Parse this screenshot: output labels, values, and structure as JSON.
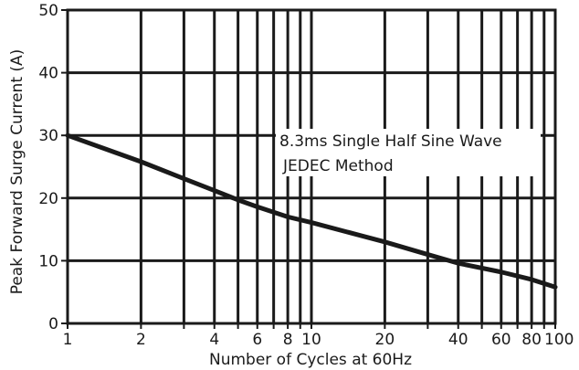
{
  "chart_data": {
    "type": "line",
    "xscale": "log",
    "xlabel": "Number of Cycles at 60Hz",
    "ylabel": "Peak Forward Surge Current (A)",
    "xlim": [
      1,
      100
    ],
    "ylim": [
      0,
      50
    ],
    "grid": true,
    "x_ticks": [
      1,
      2,
      3,
      4,
      5,
      6,
      7,
      8,
      9,
      10,
      20,
      30,
      40,
      50,
      60,
      70,
      80,
      90,
      100
    ],
    "x_tick_labels": [
      {
        "value": 1,
        "label": "1"
      },
      {
        "value": 2,
        "label": "2"
      },
      {
        "value": 4,
        "label": "4"
      },
      {
        "value": 6,
        "label": "6"
      },
      {
        "value": 8,
        "label": "8"
      },
      {
        "value": 10,
        "label": "10"
      },
      {
        "value": 20,
        "label": "20"
      },
      {
        "value": 40,
        "label": "40"
      },
      {
        "value": 60,
        "label": "60"
      },
      {
        "value": 80,
        "label": "80"
      },
      {
        "value": 100,
        "label": "100"
      }
    ],
    "y_ticks": [
      0,
      10,
      20,
      30,
      40,
      50
    ],
    "y_tick_labels": [
      "0",
      "10",
      "20",
      "30",
      "40",
      "50"
    ],
    "series": [
      {
        "x": [
          1,
          2,
          3,
          4,
          5,
          6,
          8,
          10,
          20,
          30,
          40,
          60,
          80,
          100
        ],
        "y": [
          30,
          25.8,
          23.1,
          21.2,
          19.7,
          18.6,
          17.0,
          16.1,
          13.0,
          11.0,
          9.6,
          8.2,
          7.0,
          5.8
        ]
      }
    ],
    "annotations": [
      "8.3ms Single Half Sine Wave",
      "JEDEC Method"
    ]
  },
  "colors": {
    "ink": "#1a1a1a",
    "background": "#ffffff"
  }
}
